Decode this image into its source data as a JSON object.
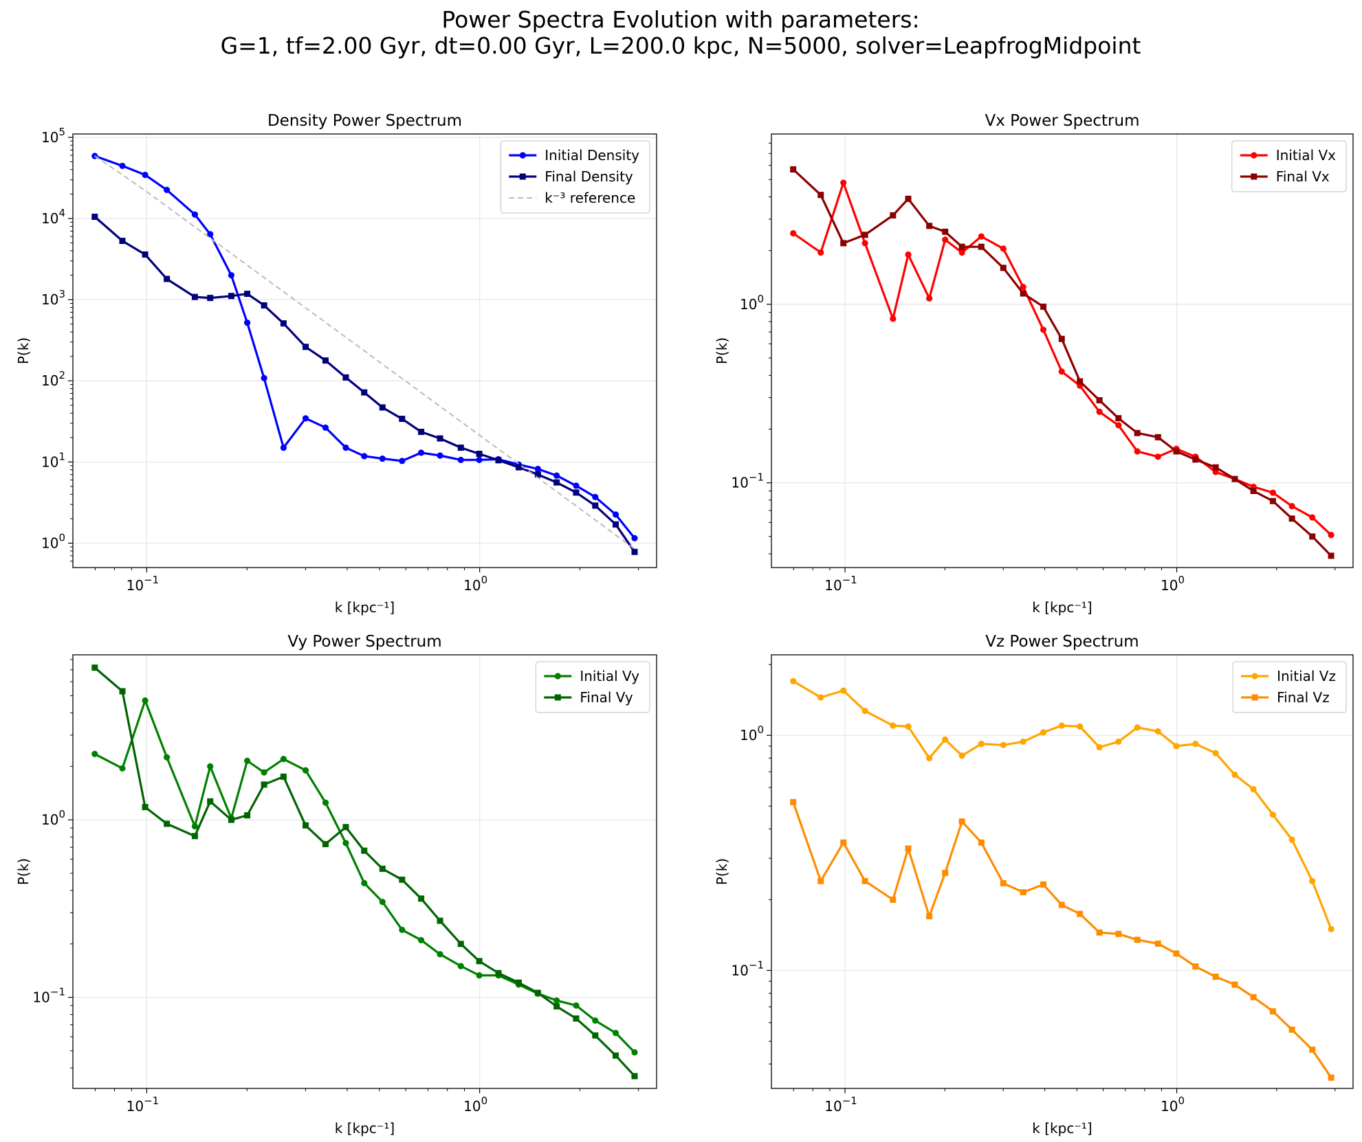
{
  "figure": {
    "title_line1": "Power Spectra Evolution with parameters:",
    "title_line2": "G=1, tf=2.00 Gyr, dt=0.00 Gyr, L=200.0 kpc, N=5000, solver=LeapfrogMidpoint"
  },
  "chart_data": [
    {
      "type": "line",
      "title": "Density Power Spectrum",
      "xlabel": "k [kpc⁻¹]",
      "ylabel": "P(k)",
      "xscale": "log",
      "yscale": "log",
      "xlim": [
        0.06,
        3.4
      ],
      "ylim": [
        0.5,
        110000
      ],
      "grid": true,
      "legend_position": "top-right",
      "xticks": [
        {
          "value": 0.1,
          "base": "10",
          "exp": "−1"
        },
        {
          "value": 1,
          "base": "10",
          "exp": "0"
        }
      ],
      "yticks": [
        {
          "value": 1,
          "base": "10",
          "exp": "0"
        },
        {
          "value": 10,
          "base": "10",
          "exp": "1"
        },
        {
          "value": 100,
          "base": "10",
          "exp": "2"
        },
        {
          "value": 1000,
          "base": "10",
          "exp": "3"
        },
        {
          "value": 10000,
          "base": "10",
          "exp": "4"
        },
        {
          "value": 100000,
          "base": "10",
          "exp": "5"
        }
      ],
      "x": [
        0.0698,
        0.0845,
        0.0989,
        0.1149,
        0.1395,
        0.1551,
        0.1795,
        0.2004,
        0.2252,
        0.2576,
        0.3001,
        0.3444,
        0.3962,
        0.4501,
        0.5106,
        0.5848,
        0.6674,
        0.7604,
        0.8779,
        0.9974,
        1.1388,
        1.3103,
        1.4962,
        1.7031,
        1.949,
        2.2249,
        2.5624,
        2.92
      ],
      "series": [
        {
          "name": "Initial Density",
          "color": "#0000ff",
          "marker": "circle",
          "linestyle": "solid",
          "values": [
            59000,
            44500,
            34500,
            22500,
            11200,
            6400,
            2000,
            520,
            108,
            15,
            34.5,
            26.5,
            15,
            11.8,
            11,
            10.3,
            13,
            12,
            10.6,
            10.6,
            10.8,
            9.3,
            8.2,
            6.8,
            5.1,
            3.7,
            2.25,
            1.15
          ]
        },
        {
          "name": "Final Density",
          "color": "#00007a",
          "marker": "square",
          "linestyle": "solid",
          "values": [
            10500,
            5300,
            3600,
            1800,
            1080,
            1050,
            1110,
            1180,
            850,
            510,
            262,
            178,
            110,
            72,
            47,
            34,
            23.5,
            19.5,
            15,
            12.6,
            10.5,
            8.6,
            7,
            5.6,
            4.2,
            2.9,
            1.7,
            0.78
          ]
        },
        {
          "name": "k⁻³ reference",
          "color": "#bbbbbb",
          "marker": "none",
          "linestyle": "dashed",
          "reference": true,
          "values": [
            59000,
            34640,
            22088,
            14095,
            7874,
            5730,
            3697,
            2657,
            1873,
            1251,
            793,
            525,
            345,
            235,
            160,
            107,
            71.8,
            48.5,
            31.5,
            21.5,
            14.4,
            9.46,
            6.36,
            4.31,
            2.88,
            1.93,
            1.26,
            0.85
          ]
        }
      ]
    },
    {
      "type": "line",
      "title": "Vx Power Spectrum",
      "xlabel": "k [kpc⁻¹]",
      "ylabel": "P(k)",
      "xscale": "log",
      "yscale": "log",
      "xlim": [
        0.06,
        3.4
      ],
      "ylim": [
        0.0335,
        9.0
      ],
      "grid": true,
      "legend_position": "top-right",
      "xticks": [
        {
          "value": 0.1,
          "base": "10",
          "exp": "−1"
        },
        {
          "value": 1,
          "base": "10",
          "exp": "0"
        }
      ],
      "yticks": [
        {
          "value": 0.1,
          "base": "10",
          "exp": "−1"
        },
        {
          "value": 1,
          "base": "10",
          "exp": "0"
        }
      ],
      "x": [
        0.0698,
        0.0845,
        0.0989,
        0.1149,
        0.1395,
        0.1551,
        0.1795,
        0.2004,
        0.2252,
        0.2576,
        0.3001,
        0.3444,
        0.3962,
        0.4501,
        0.5106,
        0.5848,
        0.6674,
        0.7604,
        0.8779,
        0.9974,
        1.1388,
        1.3103,
        1.4962,
        1.7031,
        1.949,
        2.2249,
        2.5624,
        2.92
      ],
      "series": [
        {
          "name": "Initial Vx",
          "color": "#ff0000",
          "marker": "circle",
          "linestyle": "solid",
          "values": [
            2.5,
            1.95,
            4.8,
            2.2,
            0.83,
            1.9,
            1.08,
            2.3,
            1.95,
            2.4,
            2.05,
            1.25,
            0.72,
            0.42,
            0.35,
            0.25,
            0.21,
            0.15,
            0.14,
            0.155,
            0.14,
            0.115,
            0.105,
            0.095,
            0.088,
            0.074,
            0.064,
            0.051
          ]
        },
        {
          "name": "Final Vx",
          "color": "#8b0000",
          "marker": "square",
          "linestyle": "solid",
          "values": [
            5.7,
            4.1,
            2.2,
            2.45,
            3.15,
            3.9,
            2.75,
            2.55,
            2.1,
            2.1,
            1.6,
            1.15,
            0.97,
            0.64,
            0.37,
            0.29,
            0.23,
            0.19,
            0.18,
            0.15,
            0.135,
            0.122,
            0.105,
            0.09,
            0.079,
            0.063,
            0.05,
            0.039
          ]
        }
      ]
    },
    {
      "type": "line",
      "title": "Vy Power Spectrum",
      "xlabel": "k [kpc⁻¹]",
      "ylabel": "P(k)",
      "xscale": "log",
      "yscale": "log",
      "xlim": [
        0.06,
        3.4
      ],
      "ylim": [
        0.0307,
        8.5
      ],
      "grid": true,
      "legend_position": "top-right",
      "xticks": [
        {
          "value": 0.1,
          "base": "10",
          "exp": "−1"
        },
        {
          "value": 1,
          "base": "10",
          "exp": "0"
        }
      ],
      "yticks": [
        {
          "value": 0.1,
          "base": "10",
          "exp": "−1"
        },
        {
          "value": 1,
          "base": "10",
          "exp": "0"
        }
      ],
      "x": [
        0.0698,
        0.0845,
        0.0989,
        0.1149,
        0.1395,
        0.1551,
        0.1795,
        0.2004,
        0.2252,
        0.2576,
        0.3001,
        0.3444,
        0.3962,
        0.4501,
        0.5106,
        0.5848,
        0.6674,
        0.7604,
        0.8779,
        0.9974,
        1.1388,
        1.3103,
        1.4962,
        1.7031,
        1.949,
        2.2249,
        2.5624,
        2.92
      ],
      "series": [
        {
          "name": "Initial Vy",
          "color": "#008000",
          "marker": "circle",
          "linestyle": "solid",
          "values": [
            2.35,
            1.95,
            4.7,
            2.25,
            0.92,
            2.0,
            1.02,
            2.15,
            1.85,
            2.2,
            1.9,
            1.25,
            0.74,
            0.44,
            0.345,
            0.24,
            0.21,
            0.175,
            0.15,
            0.133,
            0.133,
            0.118,
            0.105,
            0.096,
            0.09,
            0.074,
            0.063,
            0.049
          ]
        },
        {
          "name": "Final Vy",
          "color": "#006400",
          "marker": "square",
          "linestyle": "solid",
          "values": [
            7.2,
            5.3,
            1.18,
            0.95,
            0.81,
            1.27,
            1.0,
            1.06,
            1.58,
            1.75,
            0.93,
            0.73,
            0.91,
            0.67,
            0.53,
            0.46,
            0.36,
            0.27,
            0.2,
            0.16,
            0.137,
            0.121,
            0.106,
            0.089,
            0.076,
            0.061,
            0.047,
            0.036
          ]
        }
      ]
    },
    {
      "type": "line",
      "title": "Vz Power Spectrum",
      "xlabel": "k [kpc⁻¹]",
      "ylabel": "P(k)",
      "xscale": "log",
      "yscale": "log",
      "xlim": [
        0.06,
        3.4
      ],
      "ylim": [
        0.0315,
        2.2
      ],
      "grid": true,
      "legend_position": "top-right",
      "xticks": [
        {
          "value": 0.1,
          "base": "10",
          "exp": "−1"
        },
        {
          "value": 1,
          "base": "10",
          "exp": "0"
        }
      ],
      "yticks": [
        {
          "value": 0.1,
          "base": "10",
          "exp": "−1"
        },
        {
          "value": 1,
          "base": "10",
          "exp": "0"
        }
      ],
      "x": [
        0.0698,
        0.0845,
        0.0989,
        0.1149,
        0.1395,
        0.1551,
        0.1795,
        0.2004,
        0.2252,
        0.2576,
        0.3001,
        0.3444,
        0.3962,
        0.4501,
        0.5106,
        0.5848,
        0.6674,
        0.7604,
        0.8779,
        0.9974,
        1.1388,
        1.3103,
        1.4962,
        1.7031,
        1.949,
        2.2249,
        2.5624,
        2.92
      ],
      "series": [
        {
          "name": "Initial Vz",
          "color": "#ffa500",
          "marker": "circle",
          "linestyle": "solid",
          "values": [
            1.7,
            1.45,
            1.55,
            1.27,
            1.1,
            1.09,
            0.8,
            0.96,
            0.82,
            0.92,
            0.91,
            0.94,
            1.03,
            1.1,
            1.09,
            0.89,
            0.94,
            1.08,
            1.04,
            0.9,
            0.92,
            0.84,
            0.68,
            0.59,
            0.46,
            0.36,
            0.24,
            0.15
          ]
        },
        {
          "name": "Final Vz",
          "color": "#ff8c00",
          "marker": "square",
          "linestyle": "solid",
          "values": [
            0.52,
            0.24,
            0.35,
            0.24,
            0.2,
            0.33,
            0.17,
            0.26,
            0.43,
            0.35,
            0.235,
            0.215,
            0.232,
            0.19,
            0.174,
            0.145,
            0.143,
            0.135,
            0.13,
            0.118,
            0.104,
            0.094,
            0.087,
            0.077,
            0.067,
            0.056,
            0.046,
            0.035
          ]
        }
      ]
    }
  ]
}
